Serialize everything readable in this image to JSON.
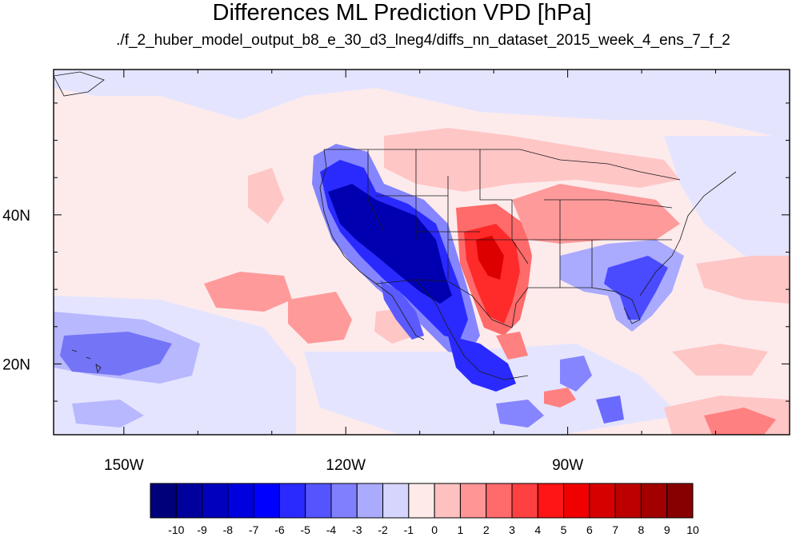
{
  "title": "Differences ML Prediction VPD [hPa]",
  "subtitle": "./f_2_huber_model_output_b8_e_30_d3_lneg4/diffs_nn_dataset_2015_week_4_ens_7_f_2",
  "map": {
    "projection": "cylindrical equidistant",
    "lon_range": [
      -159.5,
      -60
    ],
    "lat_range": [
      10.5,
      59.5
    ],
    "x_ticks": [
      {
        "lon": -150,
        "label": "150W"
      },
      {
        "lon": -120,
        "label": "120W"
      },
      {
        "lon": -90,
        "label": "90W"
      }
    ],
    "y_ticks": [
      {
        "lat": 40,
        "label": "40N"
      },
      {
        "lat": 20,
        "label": "20N"
      }
    ]
  },
  "colorbar": {
    "labels": [
      "-10",
      "-9",
      "-8",
      "-7",
      "-6",
      "-5",
      "-4",
      "-3",
      "-2",
      "-1",
      "0",
      "1",
      "2",
      "3",
      "4",
      "5",
      "6",
      "7",
      "8",
      "9",
      "10"
    ],
    "colors": [
      "#00007a",
      "#00009c",
      "#0000bd",
      "#0000de",
      "#0000ff",
      "#2a2aff",
      "#5555ff",
      "#8080ff",
      "#aaaaff",
      "#d5d5ff",
      "#ffeaea",
      "#ffc0c0",
      "#ff9595",
      "#ff6a6a",
      "#ff4040",
      "#ff1515",
      "#f00000",
      "#d70000",
      "#bc0000",
      "#a20000",
      "#870000"
    ]
  }
}
